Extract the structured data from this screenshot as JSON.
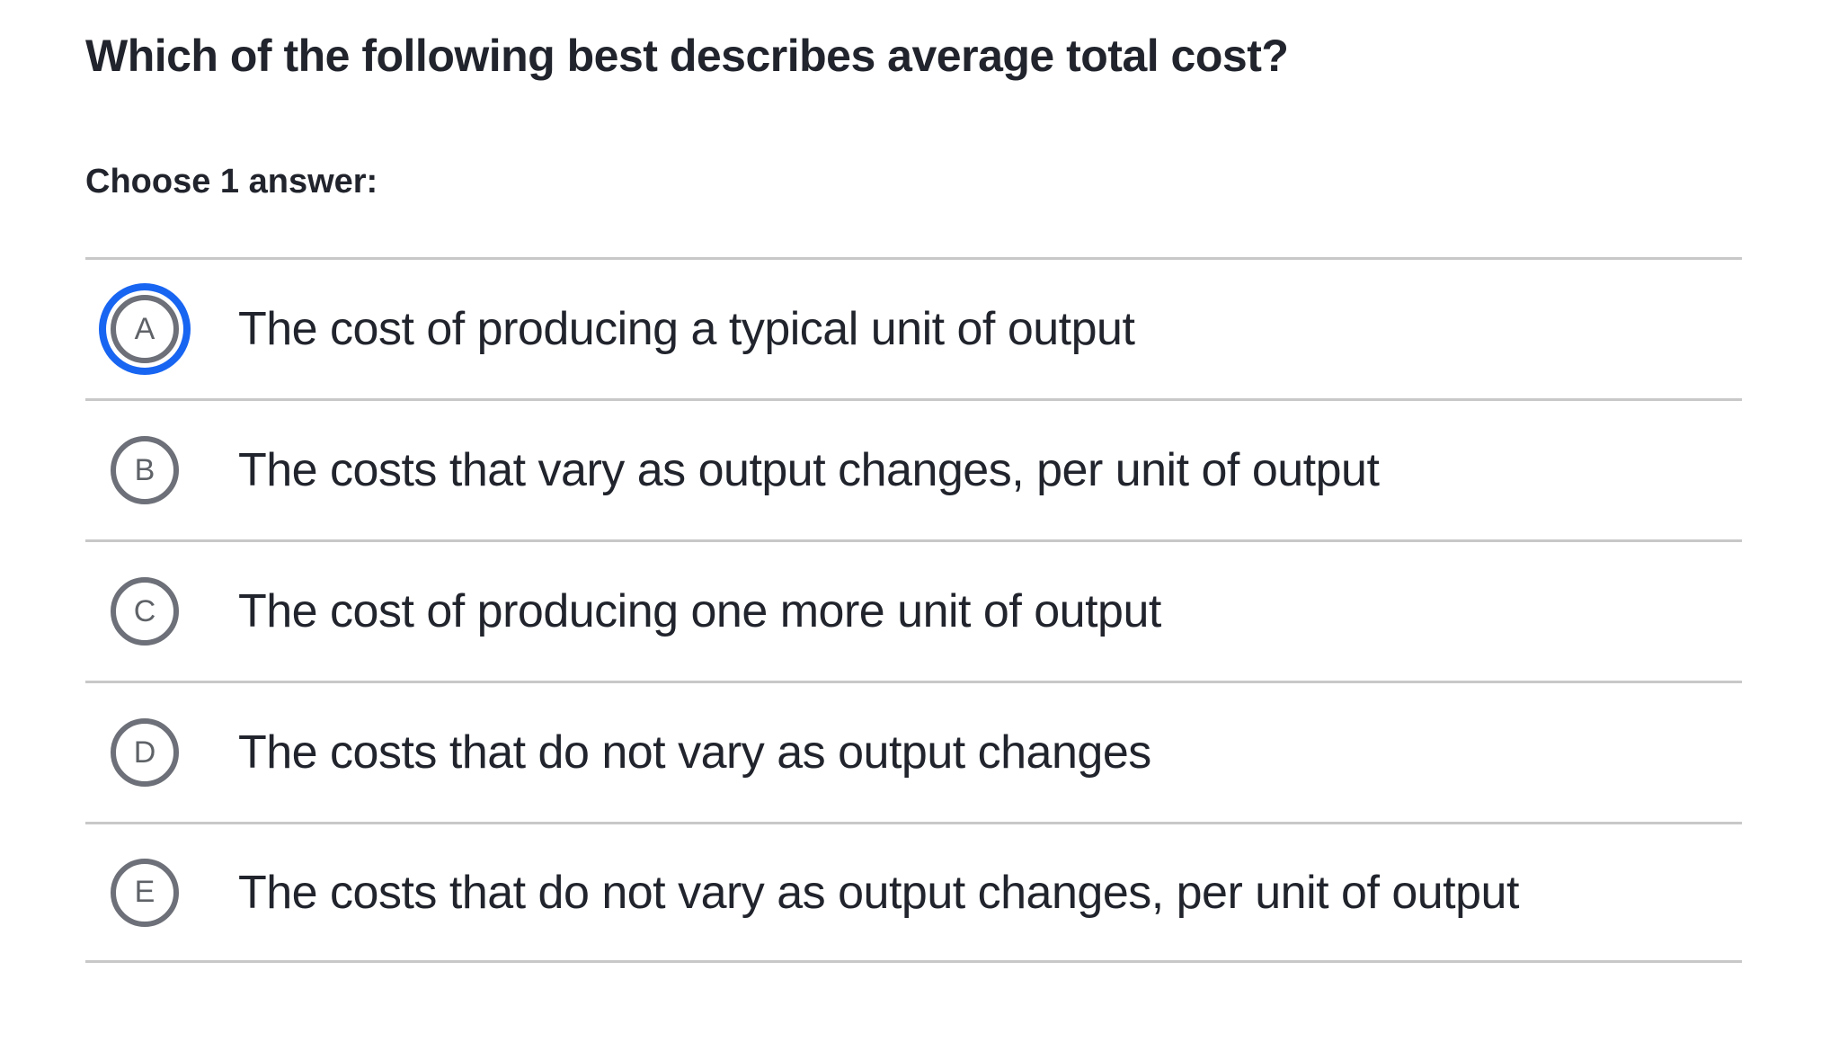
{
  "question": {
    "title": "Which of the following best describes average total cost?",
    "prompt": "Choose 1 answer:"
  },
  "options": [
    {
      "letter": "A",
      "text": "The cost of producing a typical unit of output",
      "selected": true
    },
    {
      "letter": "B",
      "text": "The costs that vary as output changes, per unit of output",
      "selected": false
    },
    {
      "letter": "C",
      "text": "The cost of producing one more unit of output",
      "selected": false
    },
    {
      "letter": "D",
      "text": "The costs that do not vary as output changes",
      "selected": false
    },
    {
      "letter": "E",
      "text": "The costs that do not vary as output changes, per unit of output",
      "selected": false
    }
  ],
  "colors": {
    "text": "#21242c",
    "selected_ring": "#1865f2",
    "circle_border": "#6d7078",
    "circle_letter": "#5f6368",
    "divider": "#c8c8c8"
  }
}
